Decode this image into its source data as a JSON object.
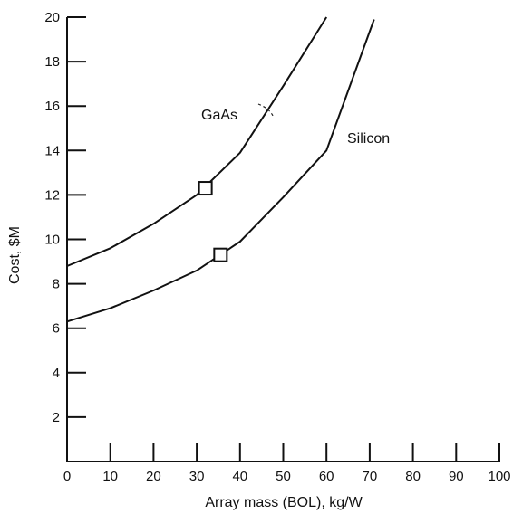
{
  "chart_data": {
    "type": "line",
    "title": "",
    "xlabel": "Array mass (BOL), kg/W",
    "ylabel": "Cost, $M",
    "xlim": [
      0,
      100
    ],
    "ylim": [
      0,
      20
    ],
    "x_ticks": [
      0,
      10,
      20,
      30,
      40,
      50,
      60,
      70,
      80,
      90,
      100
    ],
    "y_ticks": [
      2,
      4,
      6,
      8,
      10,
      12,
      14,
      16,
      18,
      20
    ],
    "grid": false,
    "series": [
      {
        "name": "GaAs",
        "x": [
          0,
          10,
          20,
          30,
          40,
          50,
          60
        ],
        "y": [
          8.8,
          9.6,
          10.7,
          12.0,
          13.9,
          16.9,
          20.0
        ],
        "marker": {
          "x": 32,
          "y": 12.3
        }
      },
      {
        "name": "Silicon",
        "x": [
          0,
          10,
          20,
          30,
          40,
          50,
          60,
          71
        ],
        "y": [
          6.3,
          6.9,
          7.7,
          8.6,
          9.9,
          11.9,
          14.0,
          19.9
        ],
        "marker": {
          "x": 35.5,
          "y": 9.3
        }
      }
    ]
  }
}
